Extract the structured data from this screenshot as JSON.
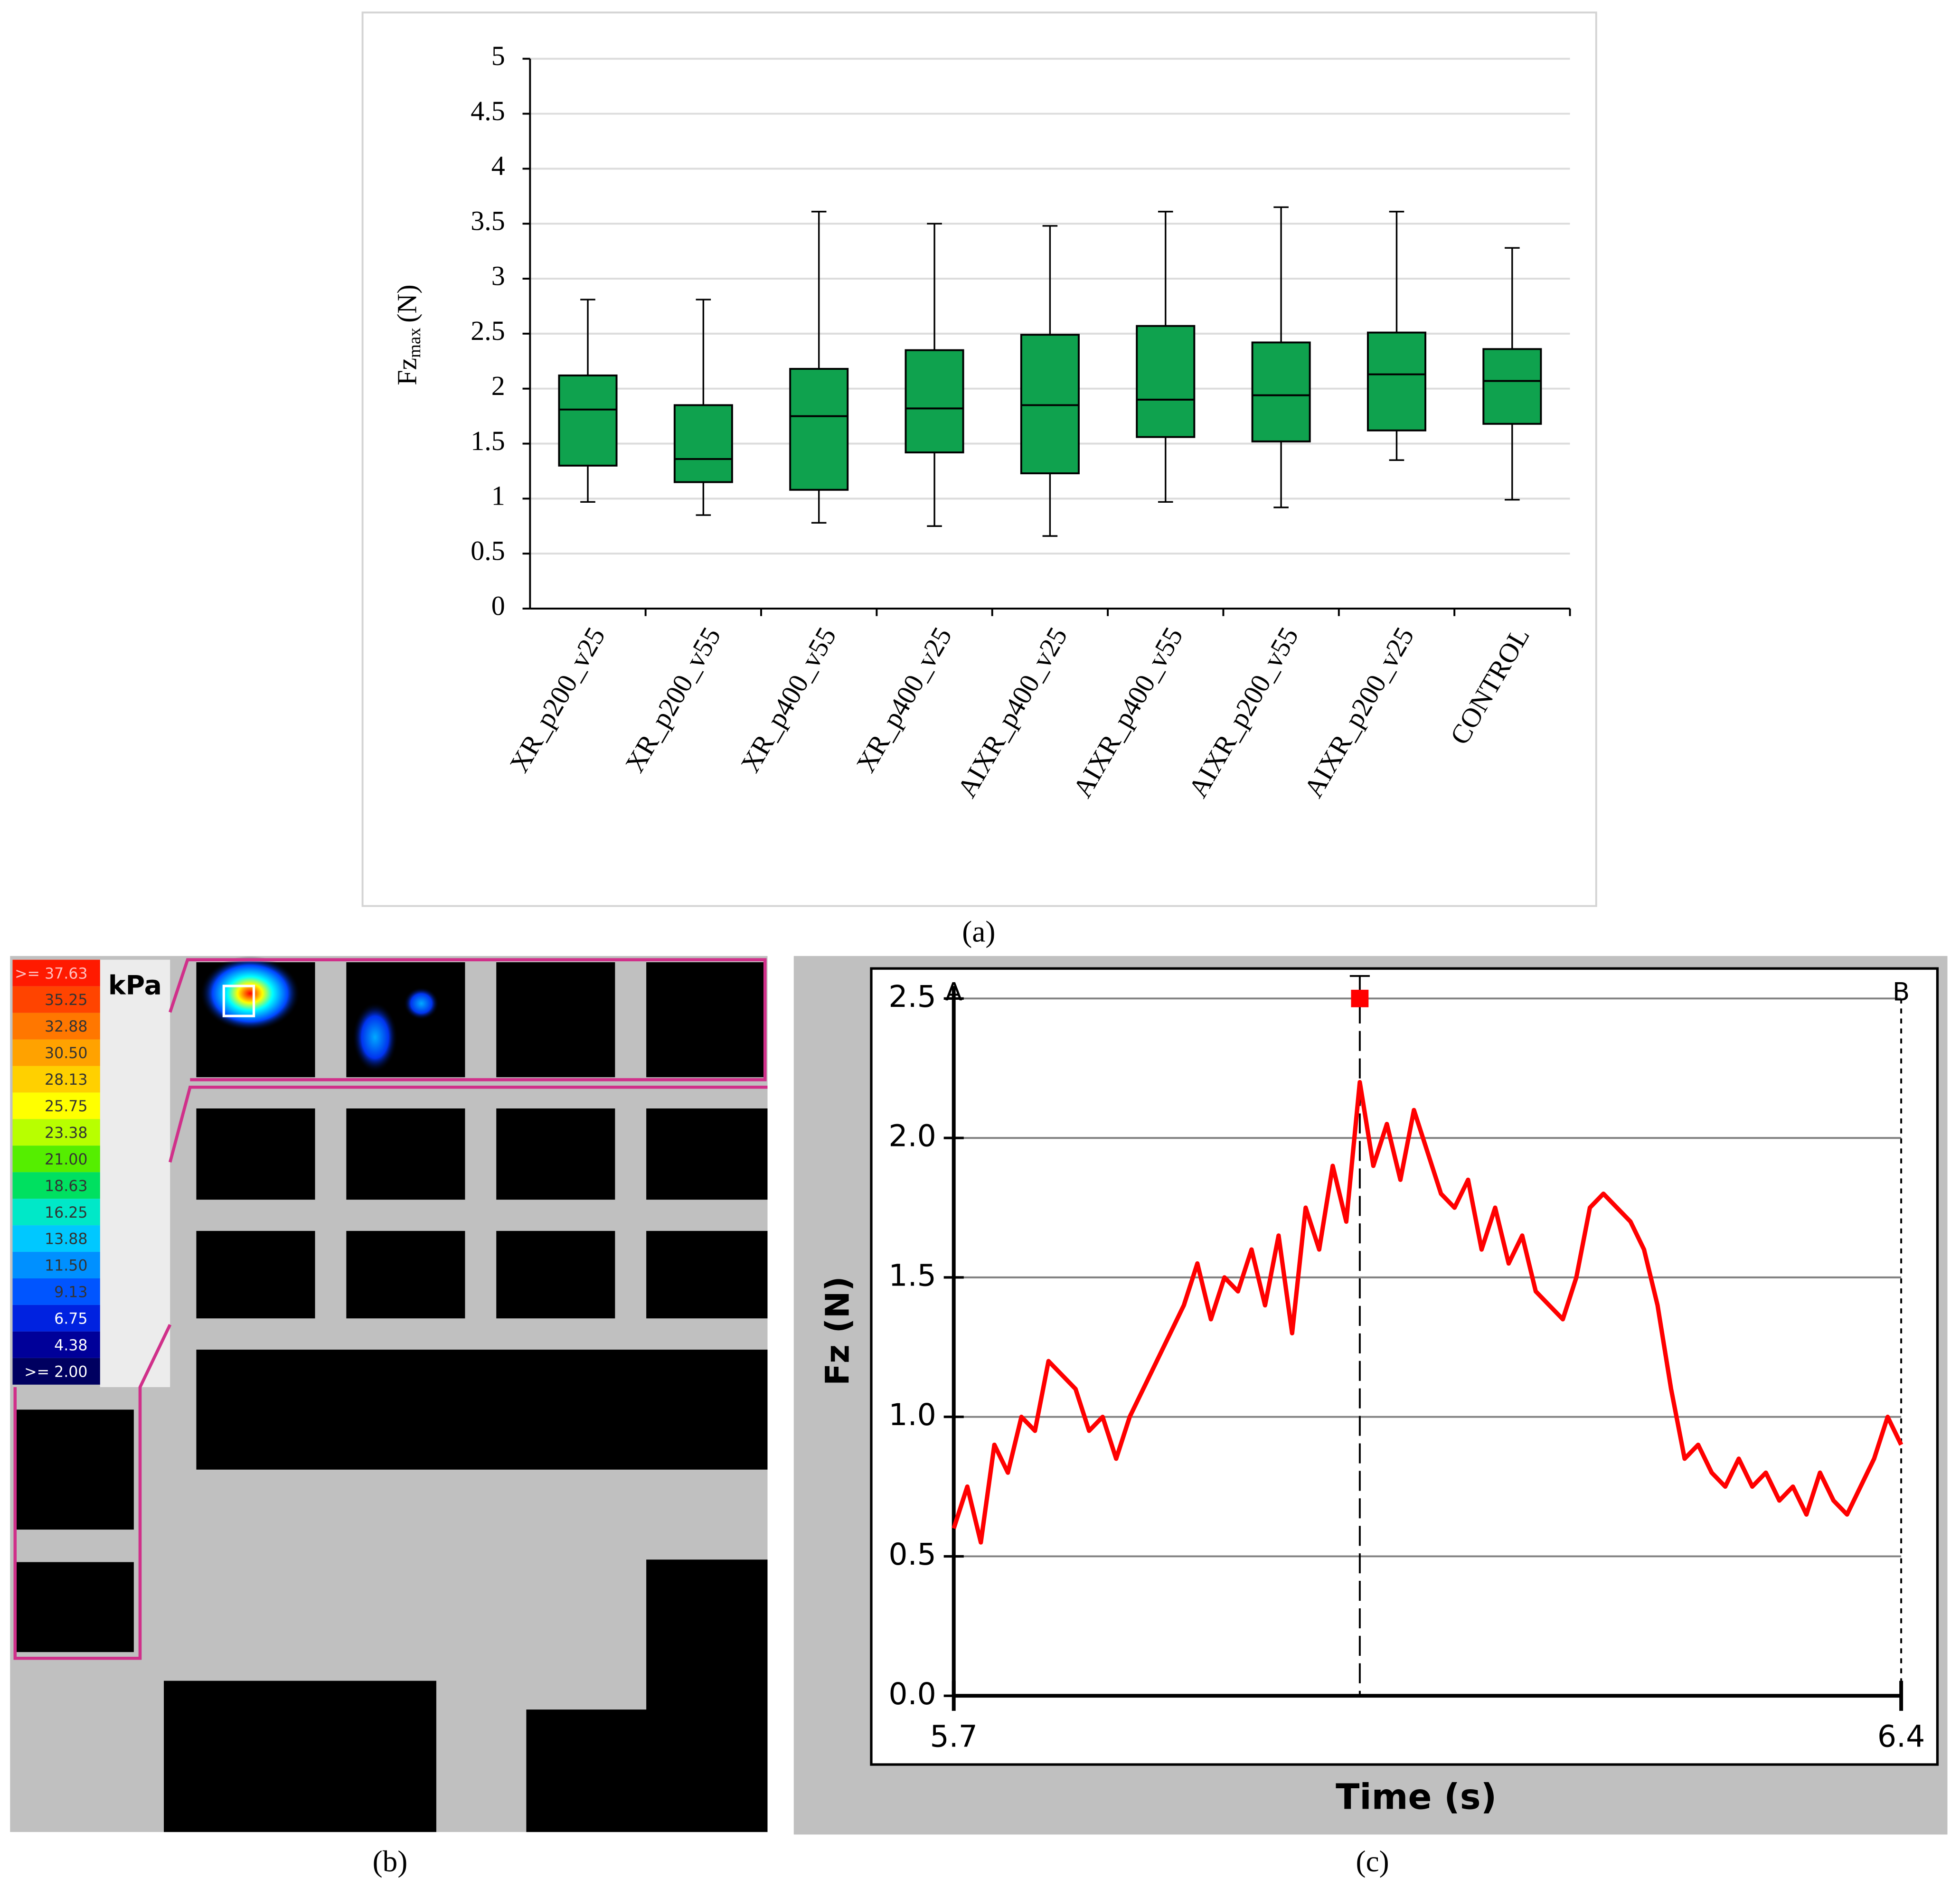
{
  "chart_data": [
    {
      "type": "box",
      "caption": "(a)",
      "y_label": "Fz",
      "y_label_sub": "max",
      "y_label_unit": "(N)",
      "categories": [
        "XR_p200_v25",
        "XR_p200_v55",
        "XR_p400_v55",
        "XR_p400_v25",
        "AIXR_p400_v25",
        "AIXR_p400_v55",
        "AIXR_p200_v55",
        "AIXR_p200_v25",
        "CONTROL"
      ],
      "boxes": [
        {
          "min": 0.97,
          "q1": 1.3,
          "median": 1.81,
          "q3": 2.12,
          "max": 2.81
        },
        {
          "min": 0.85,
          "q1": 1.15,
          "median": 1.36,
          "q3": 1.85,
          "max": 2.81
        },
        {
          "min": 0.78,
          "q1": 1.08,
          "median": 1.75,
          "q3": 2.18,
          "max": 3.61
        },
        {
          "min": 0.75,
          "q1": 1.42,
          "median": 1.82,
          "q3": 2.35,
          "max": 3.5
        },
        {
          "min": 0.66,
          "q1": 1.23,
          "median": 1.85,
          "q3": 2.49,
          "max": 3.48
        },
        {
          "min": 0.97,
          "q1": 1.56,
          "median": 1.9,
          "q3": 2.57,
          "max": 3.61
        },
        {
          "min": 0.92,
          "q1": 1.52,
          "median": 1.94,
          "q3": 2.42,
          "max": 3.65
        },
        {
          "min": 1.35,
          "q1": 1.62,
          "median": 2.13,
          "q3": 2.51,
          "max": 3.61
        },
        {
          "min": 0.99,
          "q1": 1.68,
          "median": 2.07,
          "q3": 2.36,
          "max": 3.28
        }
      ],
      "color": "#0fa24e",
      "ylim": [
        0,
        5
      ],
      "yticks": [
        0,
        0.5,
        1,
        1.5,
        2,
        2.5,
        3,
        3.5,
        4,
        4.5,
        5
      ],
      "grid": true
    },
    {
      "type": "heatmap",
      "caption": "(b)",
      "unit": "kPa",
      "colorbar": {
        "labels": [
          ">= 37.63",
          "35.25",
          "32.88",
          "30.50",
          "28.13",
          "25.75",
          "23.38",
          "21.00",
          "18.63",
          "16.25",
          "13.88",
          "11.50",
          "9.13",
          "6.75",
          "4.38",
          ">= 2.00"
        ],
        "colors": [
          "#ff1a00",
          "#ff4400",
          "#ff7700",
          "#ffa200",
          "#ffd000",
          "#ffff00",
          "#b8ff00",
          "#55ee00",
          "#00e060",
          "#00e8c8",
          "#00c8ff",
          "#0090ff",
          "#0055ff",
          "#0022e0",
          "#000099",
          "#000060"
        ]
      }
    },
    {
      "type": "line",
      "caption": "(c)",
      "x_label": "Time (s)",
      "y_label": "Fz (N)",
      "x": [
        5.7,
        5.71,
        5.72,
        5.73,
        5.74,
        5.75,
        5.76,
        5.77,
        5.78,
        5.79,
        5.8,
        5.81,
        5.82,
        5.83,
        5.84,
        5.85,
        5.86,
        5.87,
        5.88,
        5.89,
        5.9,
        5.91,
        5.92,
        5.93,
        5.94,
        5.95,
        5.96,
        5.97,
        5.98,
        5.99,
        6.0,
        6.01,
        6.02,
        6.03,
        6.04,
        6.05,
        6.06,
        6.07,
        6.08,
        6.09,
        6.1,
        6.11,
        6.12,
        6.13,
        6.14,
        6.15,
        6.16,
        6.17,
        6.18,
        6.19,
        6.2,
        6.21,
        6.22,
        6.23,
        6.24,
        6.25,
        6.26,
        6.27,
        6.28,
        6.29,
        6.3,
        6.31,
        6.32,
        6.33,
        6.34,
        6.35,
        6.36,
        6.37,
        6.38,
        6.39,
        6.4
      ],
      "series": [
        {
          "color": "#ff0000",
          "values": [
            0.6,
            0.75,
            0.55,
            0.9,
            0.8,
            1.0,
            0.95,
            1.2,
            1.15,
            1.1,
            0.95,
            1.0,
            0.85,
            1.0,
            1.1,
            1.2,
            1.3,
            1.4,
            1.55,
            1.35,
            1.5,
            1.45,
            1.6,
            1.4,
            1.65,
            1.3,
            1.75,
            1.6,
            1.9,
            1.7,
            2.2,
            1.9,
            2.05,
            1.85,
            2.1,
            1.95,
            1.8,
            1.75,
            1.85,
            1.6,
            1.75,
            1.55,
            1.65,
            1.45,
            1.4,
            1.35,
            1.5,
            1.75,
            1.8,
            1.75,
            1.7,
            1.6,
            1.4,
            1.1,
            0.85,
            0.9,
            0.8,
            0.75,
            0.85,
            0.75,
            0.8,
            0.7,
            0.75,
            0.65,
            0.8,
            0.7,
            0.65,
            0.75,
            0.85,
            1.0,
            0.9
          ]
        }
      ],
      "xlim": [
        5.7,
        6.4
      ],
      "xticks": [
        5.7,
        6.4
      ],
      "ylim": [
        0,
        2.5
      ],
      "yticks": [
        {
          "value": 0,
          "label": "0.0"
        },
        {
          "value": 0.5,
          "label": "0.5"
        },
        {
          "value": 1,
          "label": "1.0"
        },
        {
          "value": 1.5,
          "label": "1.5"
        },
        {
          "value": 2,
          "label": "2.0"
        },
        {
          "value": 2.5,
          "label": "2.5"
        }
      ],
      "grid": true,
      "cursor_x": 6.0,
      "cursor_labels": [
        "A",
        "B"
      ]
    }
  ]
}
